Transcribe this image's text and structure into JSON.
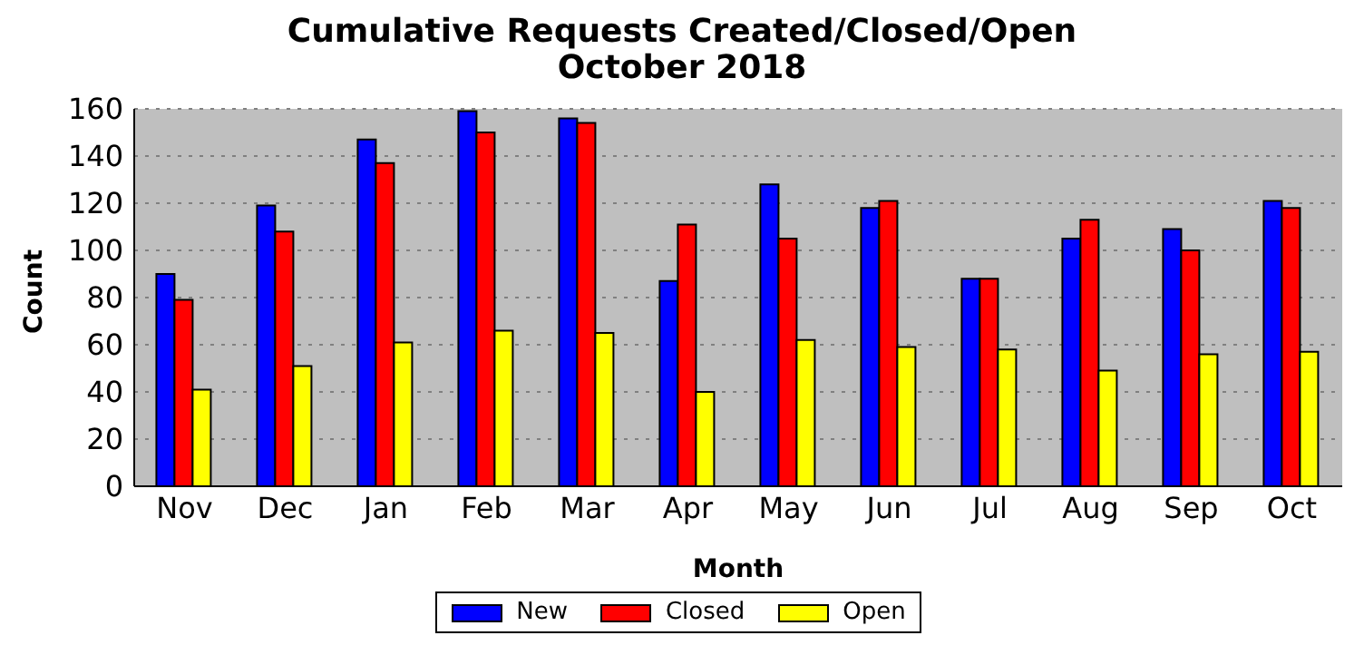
{
  "chart_data": {
    "type": "bar",
    "title": "Cumulative Requests Created/Closed/Open",
    "subtitle": "October 2018",
    "xlabel": "Month",
    "ylabel": "Count",
    "categories": [
      "Nov",
      "Dec",
      "Jan",
      "Feb",
      "Mar",
      "Apr",
      "May",
      "Jun",
      "Jul",
      "Aug",
      "Sep",
      "Oct"
    ],
    "series": [
      {
        "name": "New",
        "color": "#0000ff",
        "values": [
          90,
          119,
          147,
          159,
          156,
          87,
          128,
          118,
          88,
          105,
          109,
          121
        ]
      },
      {
        "name": "Closed",
        "color": "#ff0000",
        "values": [
          79,
          108,
          137,
          150,
          154,
          111,
          105,
          121,
          88,
          113,
          100,
          118
        ]
      },
      {
        "name": "Open",
        "color": "#ffff00",
        "values": [
          41,
          51,
          61,
          66,
          65,
          40,
          62,
          59,
          58,
          49,
          56,
          57
        ]
      }
    ],
    "ylim": [
      0,
      160
    ],
    "yticks": [
      0,
      20,
      40,
      60,
      80,
      100,
      120,
      140,
      160
    ],
    "grid": "y",
    "legend": "bottom"
  }
}
